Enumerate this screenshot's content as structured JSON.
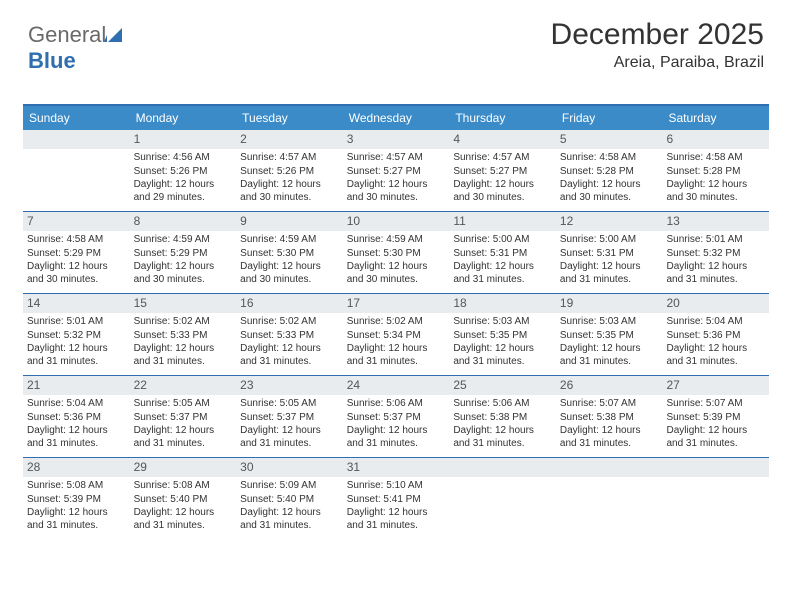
{
  "logo": {
    "text1": "General",
    "text2": "Blue",
    "sail_color": "#2f6fb0"
  },
  "title": "December 2025",
  "subtitle": "Areia, Paraiba, Brazil",
  "colors": {
    "header_bg": "#3b8bc8",
    "border": "#2f6fb0",
    "daynum_bg": "#e9ecef",
    "text": "#333333"
  },
  "day_headers": [
    "Sunday",
    "Monday",
    "Tuesday",
    "Wednesday",
    "Thursday",
    "Friday",
    "Saturday"
  ],
  "first_weekday_index": 1,
  "days": [
    {
      "n": 1,
      "sr": "4:56 AM",
      "ss": "5:26 PM",
      "dl": "12 hours and 29 minutes."
    },
    {
      "n": 2,
      "sr": "4:57 AM",
      "ss": "5:26 PM",
      "dl": "12 hours and 30 minutes."
    },
    {
      "n": 3,
      "sr": "4:57 AM",
      "ss": "5:27 PM",
      "dl": "12 hours and 30 minutes."
    },
    {
      "n": 4,
      "sr": "4:57 AM",
      "ss": "5:27 PM",
      "dl": "12 hours and 30 minutes."
    },
    {
      "n": 5,
      "sr": "4:58 AM",
      "ss": "5:28 PM",
      "dl": "12 hours and 30 minutes."
    },
    {
      "n": 6,
      "sr": "4:58 AM",
      "ss": "5:28 PM",
      "dl": "12 hours and 30 minutes."
    },
    {
      "n": 7,
      "sr": "4:58 AM",
      "ss": "5:29 PM",
      "dl": "12 hours and 30 minutes."
    },
    {
      "n": 8,
      "sr": "4:59 AM",
      "ss": "5:29 PM",
      "dl": "12 hours and 30 minutes."
    },
    {
      "n": 9,
      "sr": "4:59 AM",
      "ss": "5:30 PM",
      "dl": "12 hours and 30 minutes."
    },
    {
      "n": 10,
      "sr": "4:59 AM",
      "ss": "5:30 PM",
      "dl": "12 hours and 30 minutes."
    },
    {
      "n": 11,
      "sr": "5:00 AM",
      "ss": "5:31 PM",
      "dl": "12 hours and 31 minutes."
    },
    {
      "n": 12,
      "sr": "5:00 AM",
      "ss": "5:31 PM",
      "dl": "12 hours and 31 minutes."
    },
    {
      "n": 13,
      "sr": "5:01 AM",
      "ss": "5:32 PM",
      "dl": "12 hours and 31 minutes."
    },
    {
      "n": 14,
      "sr": "5:01 AM",
      "ss": "5:32 PM",
      "dl": "12 hours and 31 minutes."
    },
    {
      "n": 15,
      "sr": "5:02 AM",
      "ss": "5:33 PM",
      "dl": "12 hours and 31 minutes."
    },
    {
      "n": 16,
      "sr": "5:02 AM",
      "ss": "5:33 PM",
      "dl": "12 hours and 31 minutes."
    },
    {
      "n": 17,
      "sr": "5:02 AM",
      "ss": "5:34 PM",
      "dl": "12 hours and 31 minutes."
    },
    {
      "n": 18,
      "sr": "5:03 AM",
      "ss": "5:35 PM",
      "dl": "12 hours and 31 minutes."
    },
    {
      "n": 19,
      "sr": "5:03 AM",
      "ss": "5:35 PM",
      "dl": "12 hours and 31 minutes."
    },
    {
      "n": 20,
      "sr": "5:04 AM",
      "ss": "5:36 PM",
      "dl": "12 hours and 31 minutes."
    },
    {
      "n": 21,
      "sr": "5:04 AM",
      "ss": "5:36 PM",
      "dl": "12 hours and 31 minutes."
    },
    {
      "n": 22,
      "sr": "5:05 AM",
      "ss": "5:37 PM",
      "dl": "12 hours and 31 minutes."
    },
    {
      "n": 23,
      "sr": "5:05 AM",
      "ss": "5:37 PM",
      "dl": "12 hours and 31 minutes."
    },
    {
      "n": 24,
      "sr": "5:06 AM",
      "ss": "5:37 PM",
      "dl": "12 hours and 31 minutes."
    },
    {
      "n": 25,
      "sr": "5:06 AM",
      "ss": "5:38 PM",
      "dl": "12 hours and 31 minutes."
    },
    {
      "n": 26,
      "sr": "5:07 AM",
      "ss": "5:38 PM",
      "dl": "12 hours and 31 minutes."
    },
    {
      "n": 27,
      "sr": "5:07 AM",
      "ss": "5:39 PM",
      "dl": "12 hours and 31 minutes."
    },
    {
      "n": 28,
      "sr": "5:08 AM",
      "ss": "5:39 PM",
      "dl": "12 hours and 31 minutes."
    },
    {
      "n": 29,
      "sr": "5:08 AM",
      "ss": "5:40 PM",
      "dl": "12 hours and 31 minutes."
    },
    {
      "n": 30,
      "sr": "5:09 AM",
      "ss": "5:40 PM",
      "dl": "12 hours and 31 minutes."
    },
    {
      "n": 31,
      "sr": "5:10 AM",
      "ss": "5:41 PM",
      "dl": "12 hours and 31 minutes."
    }
  ],
  "labels": {
    "sunrise": "Sunrise:",
    "sunset": "Sunset:",
    "daylight": "Daylight:"
  }
}
